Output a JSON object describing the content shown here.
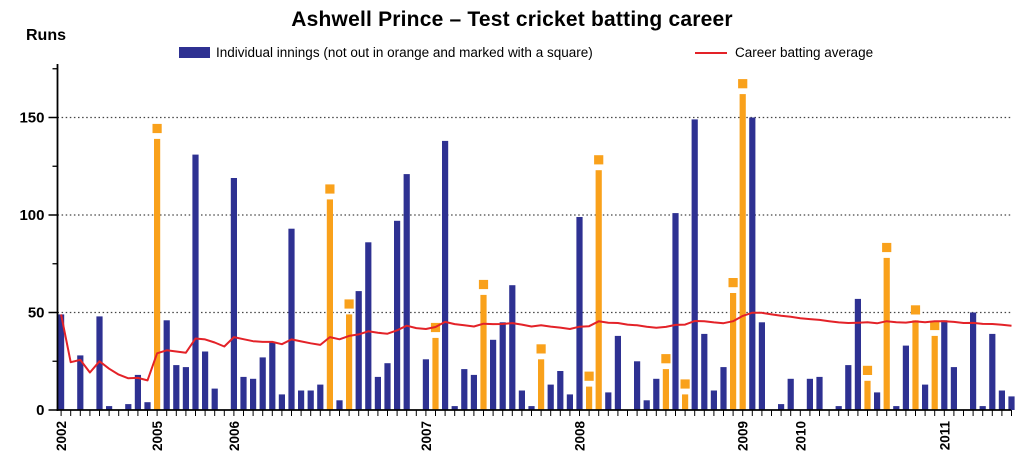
{
  "chart_data": {
    "type": "bar+line",
    "title": "Ashwell Prince – Test cricket batting career",
    "ylabel": "Runs",
    "ylim": [
      0,
      175
    ],
    "yticks_major": [
      0,
      50,
      100,
      150
    ],
    "yticks_minor": [
      25,
      75,
      125,
      175
    ],
    "gridlines_at": [
      50,
      100,
      150
    ],
    "legend_position": "top",
    "series": [
      {
        "name": "Individual innings (not out in orange and marked with a square)",
        "type": "bar",
        "color": "#2e3192",
        "not_out_color": "#f9a11b",
        "marker_for_not_out": "square",
        "innings": [
          [
            49,
            0
          ],
          [
            0,
            0
          ],
          [
            28,
            0
          ],
          [
            0,
            0
          ],
          [
            48,
            0
          ],
          [
            2,
            0
          ],
          [
            0,
            0
          ],
          [
            3,
            0
          ],
          [
            18,
            0
          ],
          [
            4,
            0
          ],
          [
            139,
            1
          ],
          [
            46,
            0
          ],
          [
            23,
            0
          ],
          [
            22,
            0
          ],
          [
            131,
            0
          ],
          [
            30,
            0
          ],
          [
            11,
            0
          ],
          [
            0,
            0
          ],
          [
            119,
            0
          ],
          [
            17,
            0
          ],
          [
            16,
            0
          ],
          [
            27,
            0
          ],
          [
            35,
            0
          ],
          [
            8,
            0
          ],
          [
            93,
            0
          ],
          [
            10,
            0
          ],
          [
            10,
            0
          ],
          [
            13,
            0
          ],
          [
            108,
            1
          ],
          [
            5,
            0
          ],
          [
            49,
            1
          ],
          [
            61,
            0
          ],
          [
            86,
            0
          ],
          [
            17,
            0
          ],
          [
            24,
            0
          ],
          [
            97,
            0
          ],
          [
            121,
            0
          ],
          [
            0,
            0
          ],
          [
            26,
            0
          ],
          [
            37,
            1
          ],
          [
            138,
            0
          ],
          [
            2,
            0
          ],
          [
            21,
            0
          ],
          [
            18,
            0
          ],
          [
            59,
            1
          ],
          [
            36,
            0
          ],
          [
            45,
            0
          ],
          [
            64,
            0
          ],
          [
            10,
            0
          ],
          [
            2,
            0
          ],
          [
            26,
            1
          ],
          [
            13,
            0
          ],
          [
            20,
            0
          ],
          [
            8,
            0
          ],
          [
            99,
            0
          ],
          [
            12,
            1
          ],
          [
            123,
            1
          ],
          [
            9,
            0
          ],
          [
            38,
            0
          ],
          [
            0,
            0
          ],
          [
            25,
            0
          ],
          [
            5,
            0
          ],
          [
            16,
            0
          ],
          [
            21,
            1
          ],
          [
            101,
            0
          ],
          [
            8,
            1
          ],
          [
            149,
            0
          ],
          [
            39,
            0
          ],
          [
            10,
            0
          ],
          [
            22,
            0
          ],
          [
            60,
            1
          ],
          [
            162,
            1
          ],
          [
            150,
            0
          ],
          [
            45,
            0
          ],
          [
            0,
            0
          ],
          [
            3,
            0
          ],
          [
            16,
            0
          ],
          [
            0,
            0
          ],
          [
            16,
            0
          ],
          [
            17,
            0
          ],
          [
            0,
            0
          ],
          [
            2,
            0
          ],
          [
            23,
            0
          ],
          [
            57,
            0
          ],
          [
            15,
            1
          ],
          [
            9,
            0
          ],
          [
            78,
            1
          ],
          [
            2,
            0
          ],
          [
            33,
            0
          ],
          [
            46,
            1
          ],
          [
            13,
            0
          ],
          [
            38,
            1
          ],
          [
            46,
            0
          ],
          [
            22,
            0
          ],
          [
            0,
            0
          ],
          [
            50,
            0
          ],
          [
            2,
            0
          ],
          [
            39,
            0
          ],
          [
            10,
            0
          ],
          [
            7,
            0
          ]
        ]
      },
      {
        "name": "Career batting average",
        "type": "line",
        "color": "#e32228",
        "derivation": "running average after each innings = cumulative runs / cumulative dismissals (not-outs excluded from dismissals)"
      }
    ],
    "x_year_labels": [
      {
        "label": "2002",
        "innings_index": 0
      },
      {
        "label": "2005",
        "innings_index": 10
      },
      {
        "label": "2006",
        "innings_index": 18
      },
      {
        "label": "2007",
        "innings_index": 38
      },
      {
        "label": "2008",
        "innings_index": 54
      },
      {
        "label": "2009",
        "innings_index": 71
      },
      {
        "label": "2010",
        "innings_index": 77
      },
      {
        "label": "2011",
        "innings_index": 92
      }
    ]
  },
  "colors": {
    "axis": "#000000",
    "gridline": "#444444",
    "tick": "#000000",
    "background": "#ffffff"
  }
}
